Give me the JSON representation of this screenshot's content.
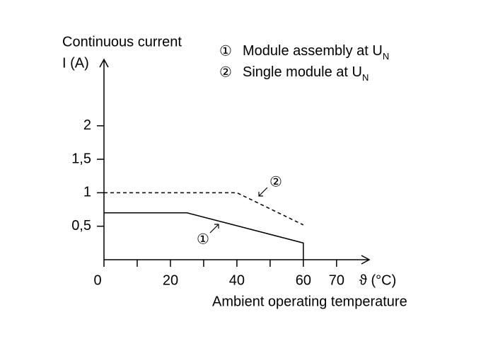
{
  "chart_data": {
    "type": "line",
    "y_label_lines": [
      "Continuous current",
      "I (A)"
    ],
    "x_label": "Ambient operating temperature",
    "x_unit": "ϑ (°C)",
    "xlim": [
      0,
      79.4
    ],
    "ylim": [
      0,
      2.98
    ],
    "xticks": [
      0,
      20,
      40,
      60,
      70
    ],
    "xminor_ticks": [
      10,
      30,
      50
    ],
    "yticks": [
      {
        "value": 0.5,
        "label": "0,5"
      },
      1,
      {
        "value": 1.5,
        "label": "1,5"
      },
      2
    ],
    "series": [
      {
        "name": "Module assembly at U",
        "name_subscript": "N",
        "marker": "①",
        "color": "#000000",
        "dash": false,
        "x": [
          0,
          25,
          60,
          60
        ],
        "values": [
          0.7,
          0.7,
          0.25,
          0
        ]
      },
      {
        "name": "Single module at U",
        "name_subscript": "N",
        "marker": "②",
        "color": "#000000",
        "dash": true,
        "x": [
          0,
          40,
          60
        ],
        "values": [
          1,
          1,
          0.52
        ]
      }
    ]
  }
}
